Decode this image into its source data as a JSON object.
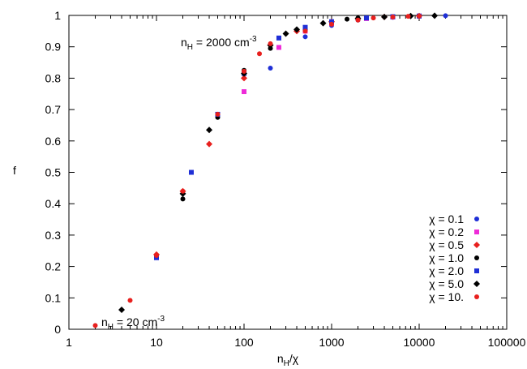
{
  "chart_data": {
    "type": "scatter",
    "title": "",
    "xlabel": "n_H/χ",
    "ylabel": "f",
    "xscale": "log",
    "xlim": [
      1,
      100000
    ],
    "ylim": [
      0,
      1
    ],
    "xticks": [
      1,
      10,
      100,
      1000,
      10000,
      100000
    ],
    "xtick_labels": [
      "1",
      "10",
      "100",
      "1000",
      "10000",
      "100000"
    ],
    "yticks": [
      0,
      0.1,
      0.2,
      0.3,
      0.4,
      0.5,
      0.6,
      0.7,
      0.8,
      0.9,
      1
    ],
    "ytick_labels": [
      "0",
      "0.1",
      "0.2",
      "0.3",
      "0.4",
      "0.5",
      "0.6",
      "0.7",
      "0.8",
      "0.9",
      "1"
    ],
    "grid": false,
    "legend_position": "bottom-right",
    "annotations": [
      {
        "text": "n_H = 2000 cm^-3",
        "x": 200,
        "y": 0.91
      },
      {
        "text": "n_H = 20 cm^-3",
        "x": 2.4,
        "y": 0.01
      }
    ],
    "series": [
      {
        "name": "χ = 0.1",
        "marker": "circle",
        "color": "#1f2fd6",
        "x": [
          200,
          500,
          1000,
          2000,
          5000,
          10000,
          20000
        ],
        "y": [
          0.832,
          0.932,
          0.968,
          0.985,
          0.994,
          0.997,
          0.999
        ]
      },
      {
        "name": "χ = 0.2",
        "marker": "square",
        "color": "#ee2bd8",
        "x": [
          100,
          250,
          500,
          1000,
          2500,
          5000,
          10000
        ],
        "y": [
          0.757,
          0.898,
          0.95,
          0.975,
          0.99,
          0.995,
          0.998
        ]
      },
      {
        "name": "χ = 0.5",
        "marker": "diamond",
        "color": "#e8201e",
        "x": [
          10,
          20,
          40,
          100,
          200,
          400,
          1000,
          2000,
          4000,
          10000
        ],
        "y": [
          0.238,
          0.44,
          0.59,
          0.8,
          0.905,
          0.95,
          0.98,
          0.99,
          0.995,
          0.998
        ]
      },
      {
        "name": "χ = 1.0",
        "marker": "circle",
        "color": "#000000",
        "x": [
          20,
          50,
          100,
          200,
          500,
          1000,
          1500,
          2000,
          5000,
          10000
        ],
        "y": [
          0.415,
          0.675,
          0.825,
          0.895,
          0.955,
          0.975,
          0.988,
          0.992,
          0.996,
          0.998
        ]
      },
      {
        "name": "χ = 2.0",
        "marker": "square",
        "color": "#1f2fd6",
        "x": [
          10,
          25,
          50,
          100,
          250,
          500,
          1000,
          2500,
          5000,
          10000
        ],
        "y": [
          0.228,
          0.5,
          0.685,
          0.815,
          0.928,
          0.962,
          0.98,
          0.992,
          0.996,
          0.998
        ]
      },
      {
        "name": "χ = 5.0",
        "marker": "diamond",
        "color": "#000000",
        "x": [
          4,
          20,
          40,
          100,
          200,
          300,
          400,
          800,
          2000,
          4000,
          8000,
          15000
        ],
        "y": [
          0.062,
          0.432,
          0.635,
          0.815,
          0.905,
          0.942,
          0.955,
          0.975,
          0.99,
          0.995,
          0.998,
          0.999
        ]
      },
      {
        "name": "χ = 10.",
        "marker": "circle",
        "color": "#e8201e",
        "x": [
          2,
          5,
          10,
          20,
          50,
          100,
          150,
          200,
          500,
          1000,
          2000,
          3000,
          5000,
          7500,
          10000
        ],
        "y": [
          0.012,
          0.092,
          0.235,
          0.44,
          0.685,
          0.822,
          0.878,
          0.91,
          0.95,
          0.972,
          0.985,
          0.992,
          0.995,
          0.997,
          0.998
        ]
      }
    ]
  }
}
